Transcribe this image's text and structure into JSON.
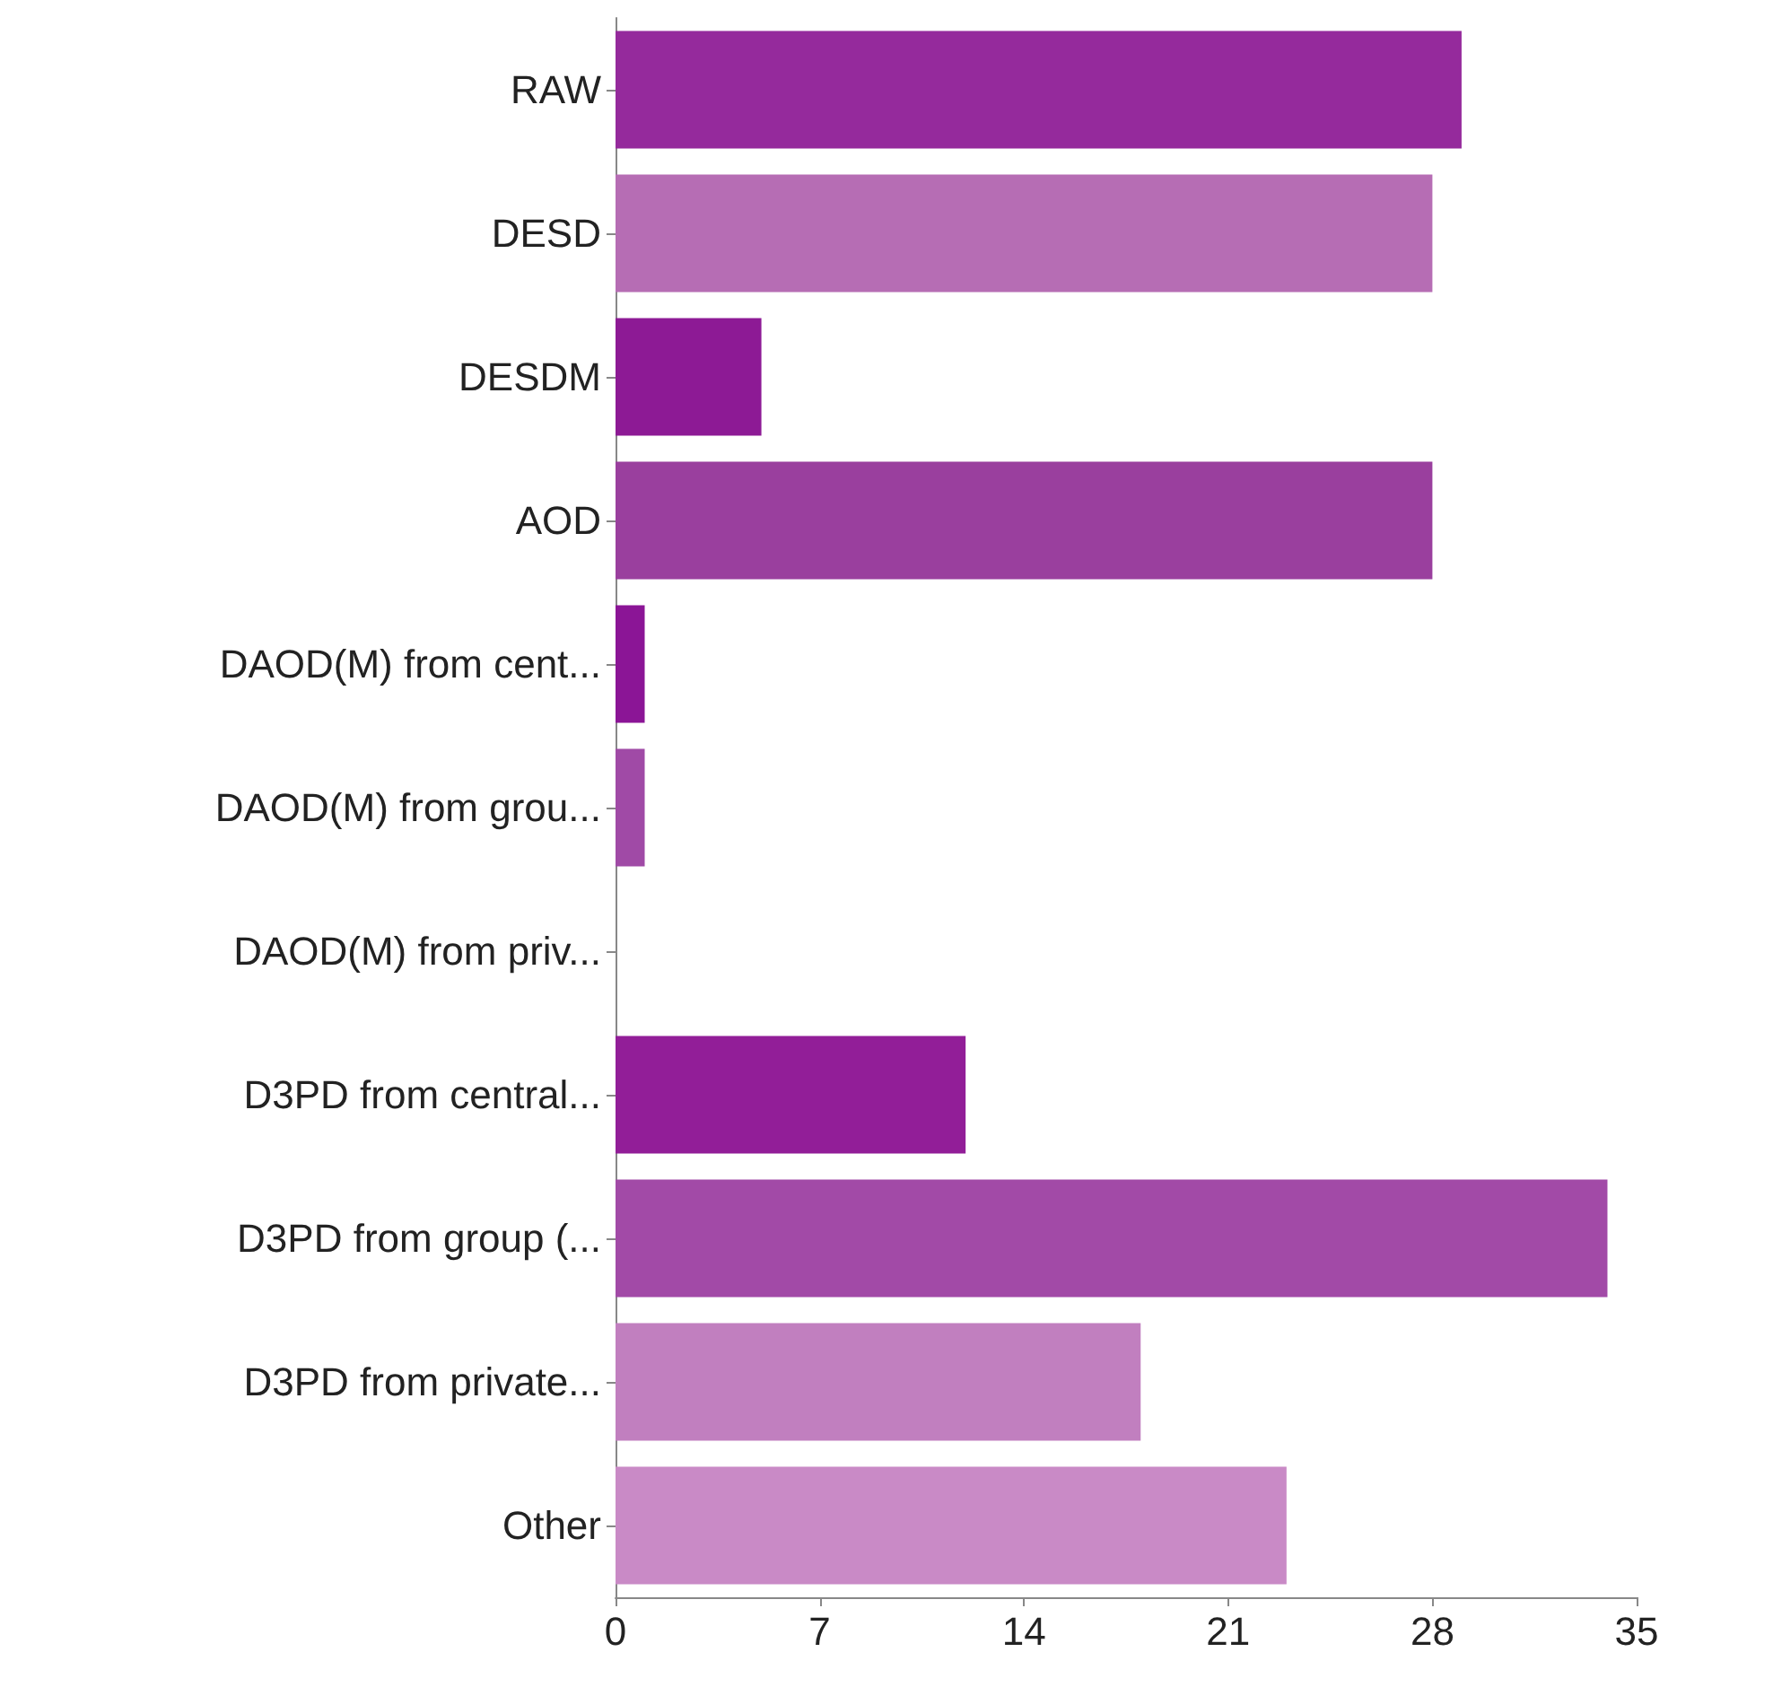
{
  "chart_data": {
    "type": "bar",
    "orientation": "horizontal",
    "categories": [
      "RAW",
      "DESD",
      "DESDM",
      "AOD",
      "DAOD(M) from cent...",
      "DAOD(M) from grou...",
      "DAOD(M) from priv...",
      "D3PD from central...",
      "D3PD from group (...",
      "D3PD from private...",
      "Other"
    ],
    "values": [
      29,
      28,
      5,
      28,
      1,
      1,
      0,
      12,
      34,
      18,
      23
    ],
    "colors": [
      "#952a9c",
      "#b66db4",
      "#8d1a95",
      "#9a3f9e",
      "#8b1596",
      "#a04aa6",
      "#a04aa6",
      "#921e98",
      "#a24aa7",
      "#c17fbf",
      "#c98ac6"
    ],
    "xlim": [
      0,
      35
    ],
    "xticks": [
      0,
      7,
      14,
      21,
      28,
      35
    ]
  }
}
